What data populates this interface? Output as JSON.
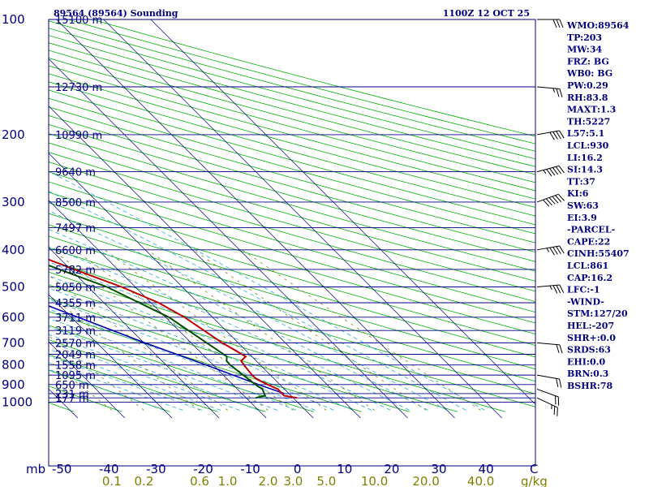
{
  "chart_data": {
    "type": "skew-t sounding",
    "title": "89564 (89564) Sounding",
    "valid_time": "1100Z 12 OCT 25",
    "pressure_unit": "mb",
    "mixing_ratio_unit": "g/kg",
    "temperature_unit": "C",
    "pressure_levels": [
      100,
      200,
      300,
      400,
      500,
      600,
      700,
      800,
      900,
      1000
    ],
    "temperature_ticks": [
      -50,
      -40,
      -30,
      -20,
      -10,
      0,
      10,
      20,
      30,
      40
    ],
    "mixing_ratio_ticks": [
      0.1,
      0.2,
      0.6,
      1.0,
      2.0,
      3.0,
      5.0,
      10.0,
      20.0,
      40.0
    ],
    "height_labels": [
      {
        "p": 100,
        "label": "15100 m"
      },
      {
        "p": 150,
        "label": "12730 m"
      },
      {
        "p": 200,
        "label": "10990 m"
      },
      {
        "p": 250,
        "label": "9640 m"
      },
      {
        "p": 300,
        "label": "8500 m"
      },
      {
        "p": 350,
        "label": "7497 m"
      },
      {
        "p": 400,
        "label": "6600 m"
      },
      {
        "p": 450,
        "label": "5782 m"
      },
      {
        "p": 500,
        "label": "5050 m"
      },
      {
        "p": 550,
        "label": "4355 m"
      },
      {
        "p": 600,
        "label": "3711 m"
      },
      {
        "p": 650,
        "label": "3119 m"
      },
      {
        "p": 700,
        "label": "2570 m"
      },
      {
        "p": 750,
        "label": "2049 m"
      },
      {
        "p": 800,
        "label": "1558 m"
      },
      {
        "p": 850,
        "label": "1095 m"
      },
      {
        "p": 900,
        "label": "650 m"
      },
      {
        "p": 950,
        "label": "231 m"
      },
      {
        "p": 975,
        "label": "177 m"
      }
    ],
    "temperature_profile": [
      {
        "p": 975,
        "t": 0.8
      },
      {
        "p": 962,
        "t": -1.5
      },
      {
        "p": 925,
        "t": -1.4
      },
      {
        "p": 900,
        "t": -2.6
      },
      {
        "p": 870,
        "t": -3.8
      },
      {
        "p": 850,
        "t": -3.9
      },
      {
        "p": 800,
        "t": -3.5
      },
      {
        "p": 780,
        "t": -3.2
      },
      {
        "p": 760,
        "t": -1.3
      },
      {
        "p": 700,
        "t": -3.4
      },
      {
        "p": 600,
        "t": -6.0
      },
      {
        "p": 550,
        "t": -8.4
      },
      {
        "p": 500,
        "t": -12.9
      },
      {
        "p": 450,
        "t": -19.2
      },
      {
        "p": 400,
        "t": -25.9
      },
      {
        "p": 350,
        "t": -33.3
      },
      {
        "p": 320,
        "t": -38.7
      },
      {
        "p": 300,
        "t": -43.4
      },
      {
        "p": 280,
        "t": -47.6
      },
      {
        "p": 262,
        "t": -51.6
      },
      {
        "p": 255,
        "t": -51.3
      },
      {
        "p": 244,
        "t": -52.6
      },
      {
        "p": 232,
        "t": -52.3
      },
      {
        "p": 215,
        "t": -55.8
      },
      {
        "p": 202,
        "t": -59.6
      },
      {
        "p": 170,
        "t": -62.8
      },
      {
        "p": 150,
        "t": -64.3
      },
      {
        "p": 140,
        "t": -63.2
      },
      {
        "p": 120,
        "t": -65.2
      },
      {
        "p": 100,
        "t": -67.9
      }
    ],
    "dewpoint_profile": [
      {
        "p": 975,
        "td": -8.0
      },
      {
        "p": 962,
        "td": -5.5
      },
      {
        "p": 925,
        "td": -4.7
      },
      {
        "p": 900,
        "td": -5.2
      },
      {
        "p": 850,
        "td": -5.8
      },
      {
        "p": 800,
        "td": -6.4
      },
      {
        "p": 780,
        "td": -6.3
      },
      {
        "p": 760,
        "td": -5.3
      },
      {
        "p": 700,
        "td": -6.7
      },
      {
        "p": 600,
        "td": -9.3
      },
      {
        "p": 500,
        "td": -16.0
      },
      {
        "p": 450,
        "td": -22.4
      },
      {
        "p": 400,
        "td": -29.2
      },
      {
        "p": 360,
        "td": -34.0
      },
      {
        "p": 340,
        "td": -37.3
      },
      {
        "p": 300,
        "td": -44.6
      },
      {
        "p": 280,
        "td": -47.1
      },
      {
        "p": 262,
        "td": -61.0
      },
      {
        "p": 250,
        "td": -55.5
      },
      {
        "p": 243,
        "td": -57.1
      },
      {
        "p": 236,
        "td": -77.2
      },
      {
        "p": 232,
        "td": -64.7
      },
      {
        "p": 212,
        "td": -65.8
      },
      {
        "p": 202,
        "td": -68.6
      },
      {
        "p": 150,
        "td": -72.7
      },
      {
        "p": 130,
        "td": -76.3
      },
      {
        "p": 100,
        "td": -82.3
      }
    ],
    "parcel_profile": [
      {
        "p": 950,
        "t": -1.0
      },
      {
        "p": 900,
        "t": -4.6
      },
      {
        "p": 800,
        "t": -11.5
      },
      {
        "p": 700,
        "t": -19.8
      },
      {
        "p": 600,
        "t": -28.6
      },
      {
        "p": 500,
        "t": -38.8
      },
      {
        "p": 400,
        "t": -50.4
      },
      {
        "p": 300,
        "t": -64.0
      },
      {
        "p": 250,
        "t": -70.8
      },
      {
        "p": 200,
        "t": -79.3
      },
      {
        "p": 150,
        "t": -89.7
      },
      {
        "p": 100,
        "t": -105.5
      }
    ],
    "wind_barbs": [
      {
        "p": 100,
        "dir": 90,
        "kt": 30
      },
      {
        "p": 150,
        "dir": 95,
        "kt": 25
      },
      {
        "p": 200,
        "dir": 80,
        "kt": 40
      },
      {
        "p": 250,
        "dir": 75,
        "kt": 55
      },
      {
        "p": 300,
        "dir": 70,
        "kt": 60
      },
      {
        "p": 400,
        "dir": 80,
        "kt": 45
      },
      {
        "p": 500,
        "dir": 85,
        "kt": 35
      },
      {
        "p": 700,
        "dir": 95,
        "kt": 20
      },
      {
        "p": 850,
        "dir": 100,
        "kt": 20
      },
      {
        "p": 925,
        "dir": 110,
        "kt": 20
      },
      {
        "p": 975,
        "dir": 115,
        "kt": 25
      }
    ],
    "indices": [
      "WMO:89564",
      "TP:203",
      "MW:34",
      "FRZ: BG",
      "WB0: BG",
      "PW:0.29",
      "RH:83.8",
      "MAXT:1.3",
      "TH:5227",
      "L57:5.1",
      "LCL:930",
      "LI:16.2",
      "SI:14.3",
      "TT:37",
      "KI:6",
      "SW:63",
      "EI:3.9",
      "-PARCEL-",
      "CAPE:22",
      "CINH:55407",
      "LCL:861",
      "CAP:16.2",
      "LFC:-1",
      "-WIND-",
      "STM:127/20",
      "HEL:-207",
      "SHR+:0.0",
      "SRDS:63",
      "EHI:0.0",
      "BRN:0.3",
      "BSHR:78"
    ],
    "colors": {
      "frame": "#000080",
      "isobar": "#000080",
      "isotherm": "#000080",
      "dry_adiabat": "#00b000",
      "moist_adiabat": "#2aa8d8",
      "mixing_ratio": "#808000",
      "temperature": "#c00000",
      "dewpoint": "#005000",
      "parcel": "#0000b0",
      "background": "#ffffff"
    }
  }
}
